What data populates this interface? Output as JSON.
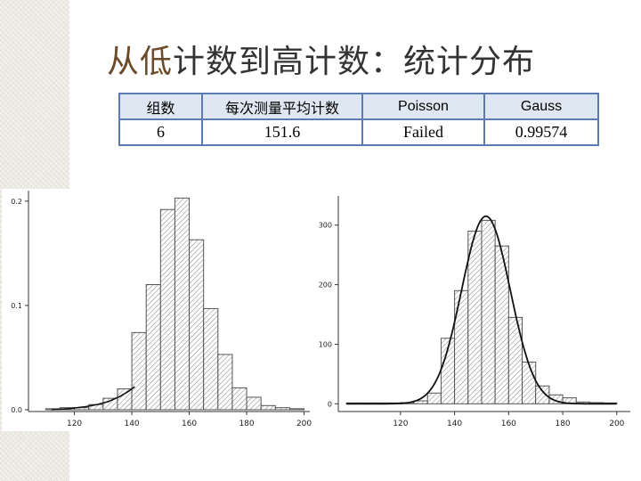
{
  "slide": {
    "title_highlight": "从低",
    "title_rest": "计数到高计数：统计分布"
  },
  "table": {
    "headers": [
      "组数",
      "每次测量平均计数",
      "Poisson",
      "Gauss"
    ],
    "values": [
      "6",
      "151.6",
      "Failed",
      "0.99574"
    ]
  },
  "colors": {
    "table_border": "#5b7bb2",
    "table_header_bg": "#dfe8f2",
    "bar_stroke": "#555555",
    "curve": "#111111"
  },
  "chart_data": [
    {
      "type": "bar",
      "title": "",
      "xlabel": "",
      "ylabel": "",
      "xlim": [
        104,
        202
      ],
      "ylim": [
        0,
        0.205
      ],
      "xticks": [
        120,
        140,
        160,
        180,
        200
      ],
      "yticks": [
        "0.0",
        "0.1",
        "0.2"
      ],
      "ytick_values": [
        0,
        0.1,
        0.2
      ],
      "bin_width": 5,
      "bins": [
        {
          "x0": 110,
          "value": 0.001
        },
        {
          "x0": 115,
          "value": 0.002
        },
        {
          "x0": 120,
          "value": 0.002
        },
        {
          "x0": 125,
          "value": 0.005
        },
        {
          "x0": 130,
          "value": 0.011
        },
        {
          "x0": 135,
          "value": 0.02
        },
        {
          "x0": 140,
          "value": 0.074
        },
        {
          "x0": 145,
          "value": 0.12
        },
        {
          "x0": 150,
          "value": 0.192
        },
        {
          "x0": 155,
          "value": 0.203
        },
        {
          "x0": 160,
          "value": 0.163
        },
        {
          "x0": 165,
          "value": 0.097
        },
        {
          "x0": 170,
          "value": 0.053
        },
        {
          "x0": 175,
          "value": 0.021
        },
        {
          "x0": 180,
          "value": 0.012
        },
        {
          "x0": 185,
          "value": 0.004
        },
        {
          "x0": 190,
          "value": 0.002
        },
        {
          "x0": 195,
          "value": 0.001
        }
      ],
      "curve": [
        [
          112,
          0.0
        ],
        [
          118,
          0.001
        ],
        [
          124,
          0.003
        ],
        [
          128,
          0.005
        ],
        [
          132,
          0.008
        ],
        [
          136,
          0.013
        ],
        [
          139,
          0.018
        ],
        [
          141,
          0.022
        ]
      ]
    },
    {
      "type": "bar",
      "title": "",
      "xlabel": "",
      "ylabel": "",
      "xlim": [
        97,
        205
      ],
      "ylim": [
        -10,
        340
      ],
      "xticks": [
        120,
        140,
        160,
        180,
        200
      ],
      "yticks": [
        "0",
        "100",
        "200",
        "300"
      ],
      "ytick_values": [
        0,
        100,
        200,
        300
      ],
      "bin_width": 5,
      "bins": [
        {
          "x0": 100,
          "value": 0
        },
        {
          "x0": 105,
          "value": 0
        },
        {
          "x0": 110,
          "value": 0
        },
        {
          "x0": 115,
          "value": 0
        },
        {
          "x0": 120,
          "value": 2
        },
        {
          "x0": 125,
          "value": 5
        },
        {
          "x0": 130,
          "value": 18
        },
        {
          "x0": 135,
          "value": 110
        },
        {
          "x0": 140,
          "value": 190
        },
        {
          "x0": 145,
          "value": 290
        },
        {
          "x0": 150,
          "value": 308
        },
        {
          "x0": 155,
          "value": 265
        },
        {
          "x0": 160,
          "value": 145
        },
        {
          "x0": 165,
          "value": 70
        },
        {
          "x0": 170,
          "value": 30
        },
        {
          "x0": 175,
          "value": 15
        },
        {
          "x0": 180,
          "value": 10
        },
        {
          "x0": 185,
          "value": 3
        },
        {
          "x0": 190,
          "value": 2
        },
        {
          "x0": 195,
          "value": 1
        }
      ],
      "gauss": {
        "mean": 151.6,
        "sigma": 9.0,
        "amplitude": 315,
        "xrange": [
          100,
          200
        ]
      }
    }
  ]
}
